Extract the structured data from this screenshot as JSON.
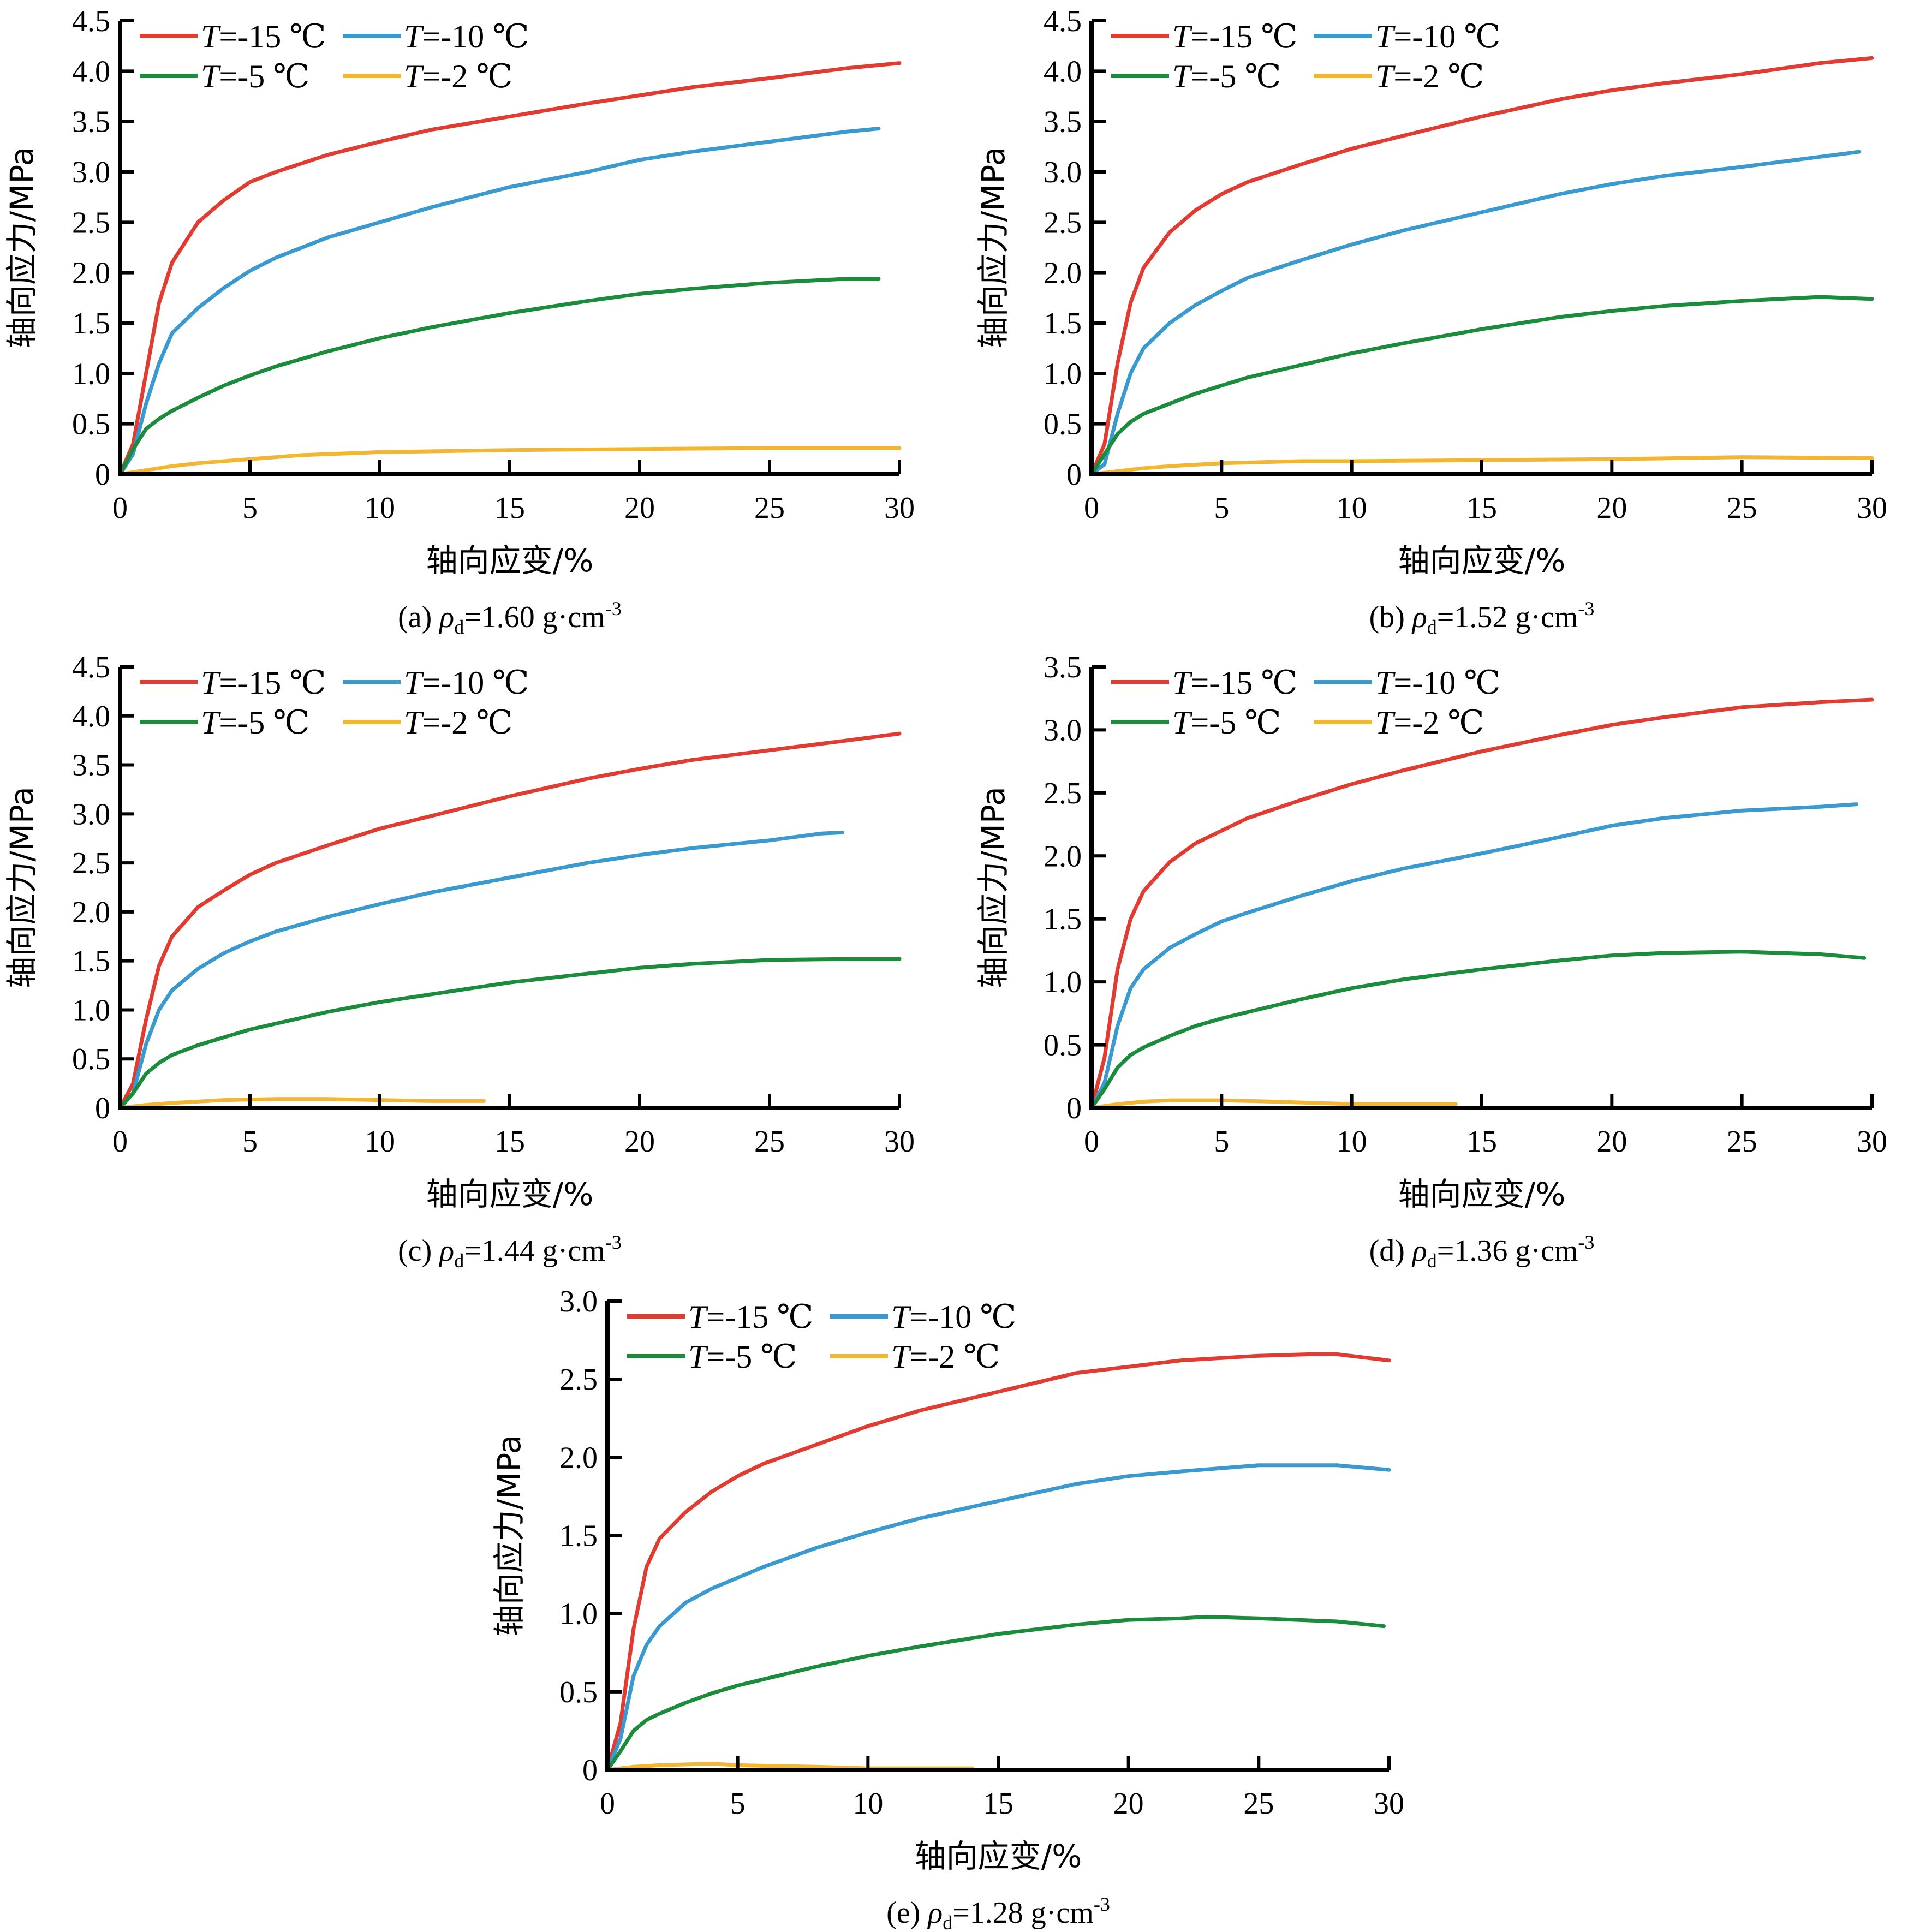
{
  "figure": {
    "x_axis_title": "轴向应变/%",
    "y_axis_title": "轴向应力/MPa",
    "legend_prefix": "T",
    "series_colors": {
      "T=-15 ℃": "#E03C31",
      "T=-10 ℃": "#3A9AD0",
      "T=-5 ℃": "#1A8C3C",
      "T=-2 ℃": "#F2B632"
    }
  },
  "chart_data": [
    {
      "id": "a",
      "type": "line",
      "title": "(a) ρd=1.60 g·cm-3",
      "caption": {
        "prefix": "(a) ",
        "rho": "ρ",
        "sub": "d",
        "value": "=1.60 g·cm",
        "sup": "-3"
      },
      "xlabel": "轴向应变/%",
      "ylabel": "轴向应力/MPa",
      "xlim": [
        0,
        30
      ],
      "ylim": [
        0,
        4.5
      ],
      "xticks": [
        0,
        5,
        10,
        15,
        20,
        25,
        30
      ],
      "xtick_labels": [
        "0",
        "5",
        "10",
        "15",
        "20",
        "25",
        "30"
      ],
      "yticks": [
        0,
        0.5,
        1.0,
        1.5,
        2.0,
        2.5,
        3.0,
        3.5,
        4.0,
        4.5
      ],
      "ytick_labels": [
        "0",
        "0.5",
        "1.0",
        "1.5",
        "2.0",
        "2.5",
        "3.0",
        "3.5",
        "4.0",
        "4.5"
      ],
      "grid": false,
      "legend_position": "top-left",
      "series": [
        {
          "name": "T=-15 ℃",
          "label_value": "=-15 ℃",
          "x": [
            0,
            0.5,
            1,
            1.5,
            2,
            3,
            4,
            5,
            6,
            8,
            10,
            12,
            15,
            18,
            20,
            22,
            25,
            28,
            30
          ],
          "y": [
            0,
            0.3,
            1.0,
            1.7,
            2.1,
            2.5,
            2.72,
            2.9,
            3.0,
            3.17,
            3.3,
            3.42,
            3.55,
            3.68,
            3.76,
            3.84,
            3.93,
            4.03,
            4.08
          ]
        },
        {
          "name": "T=-10 ℃",
          "label_value": "=-10 ℃",
          "x": [
            0,
            0.5,
            1,
            1.5,
            2,
            3,
            4,
            5,
            6,
            8,
            10,
            12,
            15,
            18,
            20,
            22,
            25,
            28,
            29.2
          ],
          "y": [
            0,
            0.2,
            0.7,
            1.1,
            1.4,
            1.65,
            1.85,
            2.02,
            2.15,
            2.35,
            2.5,
            2.65,
            2.85,
            3.0,
            3.12,
            3.2,
            3.3,
            3.4,
            3.43
          ]
        },
        {
          "name": "T=-5 ℃",
          "label_value": "=-5 ℃",
          "x": [
            0,
            0.5,
            1,
            1.5,
            2,
            3,
            4,
            5,
            6,
            8,
            10,
            12,
            15,
            18,
            20,
            22,
            25,
            28,
            29.2
          ],
          "y": [
            0,
            0.25,
            0.45,
            0.55,
            0.63,
            0.76,
            0.88,
            0.98,
            1.07,
            1.22,
            1.35,
            1.46,
            1.6,
            1.72,
            1.79,
            1.84,
            1.9,
            1.94,
            1.94
          ]
        },
        {
          "name": "T=-2 ℃",
          "label_value": "=-2 ℃",
          "x": [
            0,
            1,
            2,
            3,
            5,
            7,
            10,
            15,
            20,
            25,
            30
          ],
          "y": [
            0,
            0.04,
            0.08,
            0.11,
            0.15,
            0.19,
            0.22,
            0.24,
            0.25,
            0.26,
            0.26
          ]
        }
      ]
    },
    {
      "id": "b",
      "type": "line",
      "title": "(b) ρd=1.52 g·cm-3",
      "caption": {
        "prefix": "(b) ",
        "rho": "ρ",
        "sub": "d",
        "value": "=1.52 g·cm",
        "sup": "-3"
      },
      "xlabel": "轴向应变/%",
      "ylabel": "轴向应力/MPa",
      "xlim": [
        0,
        30
      ],
      "ylim": [
        0,
        4.5
      ],
      "xticks": [
        0,
        5,
        10,
        15,
        20,
        25,
        30
      ],
      "xtick_labels": [
        "0",
        "5",
        "10",
        "15",
        "20",
        "25",
        "30"
      ],
      "yticks": [
        0,
        0.5,
        1.0,
        1.5,
        2.0,
        2.5,
        3.0,
        3.5,
        4.0,
        4.5
      ],
      "ytick_labels": [
        "0",
        "0.5",
        "1.0",
        "1.5",
        "2.0",
        "2.5",
        "3.0",
        "3.5",
        "4.0",
        "4.5"
      ],
      "grid": false,
      "legend_position": "top-left",
      "series": [
        {
          "name": "T=-15 ℃",
          "label_value": "=-15 ℃",
          "x": [
            0,
            0.5,
            1,
            1.5,
            2,
            3,
            4,
            5,
            6,
            8,
            10,
            12,
            15,
            18,
            20,
            22,
            25,
            28,
            30
          ],
          "y": [
            0,
            0.3,
            1.1,
            1.7,
            2.05,
            2.4,
            2.62,
            2.78,
            2.9,
            3.07,
            3.23,
            3.36,
            3.55,
            3.72,
            3.81,
            3.88,
            3.97,
            4.08,
            4.13
          ]
        },
        {
          "name": "T=-10 ℃",
          "label_value": "=-10 ℃",
          "x": [
            0,
            0.5,
            1,
            1.5,
            2,
            3,
            4,
            5,
            6,
            8,
            10,
            12,
            15,
            18,
            20,
            22,
            25,
            28,
            29.5
          ],
          "y": [
            0,
            0.1,
            0.6,
            1.0,
            1.25,
            1.5,
            1.68,
            1.82,
            1.95,
            2.12,
            2.28,
            2.42,
            2.6,
            2.78,
            2.88,
            2.96,
            3.05,
            3.15,
            3.2
          ]
        },
        {
          "name": "T=-5 ℃",
          "label_value": "=-5 ℃",
          "x": [
            0,
            0.5,
            1,
            1.5,
            2,
            3,
            4,
            5,
            6,
            8,
            10,
            12,
            15,
            18,
            20,
            22,
            25,
            28,
            30
          ],
          "y": [
            0,
            0.2,
            0.4,
            0.52,
            0.6,
            0.7,
            0.8,
            0.88,
            0.96,
            1.08,
            1.2,
            1.3,
            1.44,
            1.56,
            1.62,
            1.67,
            1.72,
            1.76,
            1.74
          ]
        },
        {
          "name": "T=-2 ℃",
          "label_value": "=-2 ℃",
          "x": [
            0,
            1,
            2,
            3,
            5,
            8,
            10,
            15,
            20,
            25,
            30
          ],
          "y": [
            0,
            0.03,
            0.06,
            0.08,
            0.11,
            0.13,
            0.13,
            0.14,
            0.15,
            0.17,
            0.16
          ]
        }
      ]
    },
    {
      "id": "c",
      "type": "line",
      "title": "(c) ρd=1.44 g·cm-3",
      "caption": {
        "prefix": "(c) ",
        "rho": "ρ",
        "sub": "d",
        "value": "=1.44 g·cm",
        "sup": "-3"
      },
      "xlabel": "轴向应变/%",
      "ylabel": "轴向应力/MPa",
      "xlim": [
        0,
        30
      ],
      "ylim": [
        0,
        4.5
      ],
      "xticks": [
        0,
        5,
        10,
        15,
        20,
        25,
        30
      ],
      "xtick_labels": [
        "0",
        "5",
        "10",
        "15",
        "20",
        "25",
        "30"
      ],
      "yticks": [
        0,
        0.5,
        1.0,
        1.5,
        2.0,
        2.5,
        3.0,
        3.5,
        4.0,
        4.5
      ],
      "ytick_labels": [
        "0",
        "0.5",
        "1.0",
        "1.5",
        "2.0",
        "2.5",
        "3.0",
        "3.5",
        "4.0",
        "4.5"
      ],
      "grid": false,
      "legend_position": "top-left",
      "series": [
        {
          "name": "T=-15 ℃",
          "label_value": "=-15 ℃",
          "x": [
            0,
            0.5,
            1,
            1.5,
            2,
            3,
            4,
            5,
            6,
            8,
            10,
            12,
            15,
            18,
            20,
            22,
            25,
            28,
            30
          ],
          "y": [
            0,
            0.25,
            0.9,
            1.45,
            1.75,
            2.05,
            2.22,
            2.38,
            2.5,
            2.68,
            2.85,
            2.98,
            3.18,
            3.36,
            3.46,
            3.55,
            3.65,
            3.75,
            3.82
          ]
        },
        {
          "name": "T=-10 ℃",
          "label_value": "=-10 ℃",
          "x": [
            0,
            0.5,
            1,
            1.5,
            2,
            3,
            4,
            5,
            6,
            8,
            10,
            12,
            15,
            18,
            20,
            22,
            25,
            27,
            27.8
          ],
          "y": [
            0,
            0.15,
            0.65,
            1.0,
            1.2,
            1.42,
            1.58,
            1.7,
            1.8,
            1.95,
            2.08,
            2.2,
            2.35,
            2.5,
            2.58,
            2.65,
            2.73,
            2.8,
            2.81
          ]
        },
        {
          "name": "T=-5 ℃",
          "label_value": "=-5 ℃",
          "x": [
            0,
            0.5,
            1,
            1.5,
            2,
            3,
            4,
            5,
            6,
            8,
            10,
            12,
            15,
            18,
            20,
            22,
            25,
            28,
            30
          ],
          "y": [
            0,
            0.15,
            0.35,
            0.46,
            0.54,
            0.64,
            0.72,
            0.8,
            0.86,
            0.98,
            1.08,
            1.16,
            1.28,
            1.37,
            1.43,
            1.47,
            1.51,
            1.52,
            1.52
          ]
        },
        {
          "name": "T=-2 ℃",
          "label_value": "=-2 ℃",
          "x": [
            0,
            1,
            2,
            4,
            6,
            8,
            10,
            12,
            14
          ],
          "y": [
            0,
            0.03,
            0.05,
            0.08,
            0.09,
            0.09,
            0.08,
            0.07,
            0.07
          ]
        }
      ]
    },
    {
      "id": "d",
      "type": "line",
      "title": "(d) ρd=1.36 g·cm-3",
      "caption": {
        "prefix": "(d) ",
        "rho": "ρ",
        "sub": "d",
        "value": "=1.36 g·cm",
        "sup": "-3"
      },
      "xlabel": "轴向应变/%",
      "ylabel": "轴向应力/MPa",
      "xlim": [
        0,
        30
      ],
      "ylim": [
        0,
        3.5
      ],
      "xticks": [
        0,
        5,
        10,
        15,
        20,
        25,
        30
      ],
      "xtick_labels": [
        "0",
        "5",
        "10",
        "15",
        "20",
        "25",
        "30"
      ],
      "yticks": [
        0,
        0.5,
        1.0,
        1.5,
        2.0,
        2.5,
        3.0,
        3.5
      ],
      "ytick_labels": [
        "0",
        "0.5",
        "1.0",
        "1.5",
        "2.0",
        "2.5",
        "3.0",
        "3.5"
      ],
      "grid": false,
      "legend_position": "top-left",
      "series": [
        {
          "name": "T=-15 ℃",
          "label_value": "=-15 ℃",
          "x": [
            0,
            0.5,
            1,
            1.5,
            2,
            3,
            4,
            5,
            6,
            8,
            10,
            12,
            15,
            18,
            20,
            22,
            25,
            28,
            30
          ],
          "y": [
            0,
            0.4,
            1.1,
            1.5,
            1.72,
            1.95,
            2.1,
            2.2,
            2.3,
            2.44,
            2.57,
            2.68,
            2.83,
            2.96,
            3.04,
            3.1,
            3.18,
            3.22,
            3.24
          ]
        },
        {
          "name": "T=-10 ℃",
          "label_value": "=-10 ℃",
          "x": [
            0,
            0.5,
            1,
            1.5,
            2,
            3,
            4,
            5,
            6,
            8,
            10,
            12,
            15,
            18,
            20,
            22,
            25,
            28,
            29.4
          ],
          "y": [
            0,
            0.2,
            0.65,
            0.95,
            1.1,
            1.27,
            1.38,
            1.48,
            1.55,
            1.68,
            1.8,
            1.9,
            2.02,
            2.15,
            2.24,
            2.3,
            2.36,
            2.39,
            2.41
          ]
        },
        {
          "name": "T=-5 ℃",
          "label_value": "=-5 ℃",
          "x": [
            0,
            0.5,
            1,
            1.5,
            2,
            3,
            4,
            5,
            6,
            8,
            10,
            12,
            15,
            18,
            20,
            22,
            25,
            28,
            29.7
          ],
          "y": [
            0,
            0.15,
            0.32,
            0.42,
            0.48,
            0.57,
            0.65,
            0.71,
            0.76,
            0.86,
            0.95,
            1.02,
            1.1,
            1.17,
            1.21,
            1.23,
            1.24,
            1.22,
            1.19
          ]
        },
        {
          "name": "T=-2 ℃",
          "label_value": "=-2 ℃",
          "x": [
            0,
            1,
            2,
            3,
            5,
            7,
            10,
            12,
            14
          ],
          "y": [
            0,
            0.03,
            0.05,
            0.06,
            0.06,
            0.05,
            0.03,
            0.03,
            0.03
          ]
        }
      ]
    },
    {
      "id": "e",
      "type": "line",
      "title": "(e) ρd=1.28 g·cm-3",
      "caption": {
        "prefix": "(e) ",
        "rho": "ρ",
        "sub": "d",
        "value": "=1.28 g·cm",
        "sup": "-3"
      },
      "xlabel": "轴向应变/%",
      "ylabel": "轴向应力/MPa",
      "xlim": [
        0,
        30
      ],
      "ylim": [
        0,
        3.0
      ],
      "xticks": [
        0,
        5,
        10,
        15,
        20,
        25,
        30
      ],
      "xtick_labels": [
        "0",
        "5",
        "10",
        "15",
        "20",
        "25",
        "30"
      ],
      "yticks": [
        0,
        0.5,
        1.0,
        1.5,
        2.0,
        2.5,
        3.0
      ],
      "ytick_labels": [
        "0",
        "0.5",
        "1.0",
        "1.5",
        "2.0",
        "2.5",
        "3.0"
      ],
      "grid": false,
      "legend_position": "top-left",
      "series": [
        {
          "name": "T=-15 ℃",
          "label_value": "=-15 ℃",
          "x": [
            0,
            0.5,
            1,
            1.5,
            2,
            3,
            4,
            5,
            6,
            8,
            10,
            12,
            15,
            18,
            20,
            22,
            25,
            27,
            28,
            30
          ],
          "y": [
            0,
            0.3,
            0.9,
            1.3,
            1.48,
            1.65,
            1.78,
            1.88,
            1.96,
            2.08,
            2.2,
            2.3,
            2.42,
            2.54,
            2.58,
            2.62,
            2.65,
            2.66,
            2.66,
            2.62
          ]
        },
        {
          "name": "T=-10 ℃",
          "label_value": "=-10 ℃",
          "x": [
            0,
            0.5,
            1,
            1.5,
            2,
            3,
            4,
            5,
            6,
            8,
            10,
            12,
            15,
            18,
            20,
            22,
            25,
            28,
            30
          ],
          "y": [
            0,
            0.2,
            0.6,
            0.8,
            0.92,
            1.07,
            1.16,
            1.23,
            1.3,
            1.42,
            1.52,
            1.61,
            1.72,
            1.83,
            1.88,
            1.91,
            1.95,
            1.95,
            1.92
          ]
        },
        {
          "name": "T=-5 ℃",
          "label_value": "=-5 ℃",
          "x": [
            0,
            0.5,
            1,
            1.5,
            2,
            3,
            4,
            5,
            6,
            8,
            10,
            12,
            15,
            18,
            20,
            22,
            23,
            25,
            28,
            29.8
          ],
          "y": [
            0,
            0.12,
            0.25,
            0.32,
            0.36,
            0.43,
            0.49,
            0.54,
            0.58,
            0.66,
            0.73,
            0.79,
            0.87,
            0.93,
            0.96,
            0.97,
            0.98,
            0.97,
            0.95,
            0.92
          ]
        },
        {
          "name": "T=-2 ℃",
          "label_value": "=-2 ℃",
          "x": [
            0,
            1,
            2,
            4,
            5,
            8,
            10,
            14
          ],
          "y": [
            0,
            0.02,
            0.03,
            0.04,
            0.03,
            0.02,
            0.01,
            0.01
          ]
        }
      ]
    }
  ]
}
